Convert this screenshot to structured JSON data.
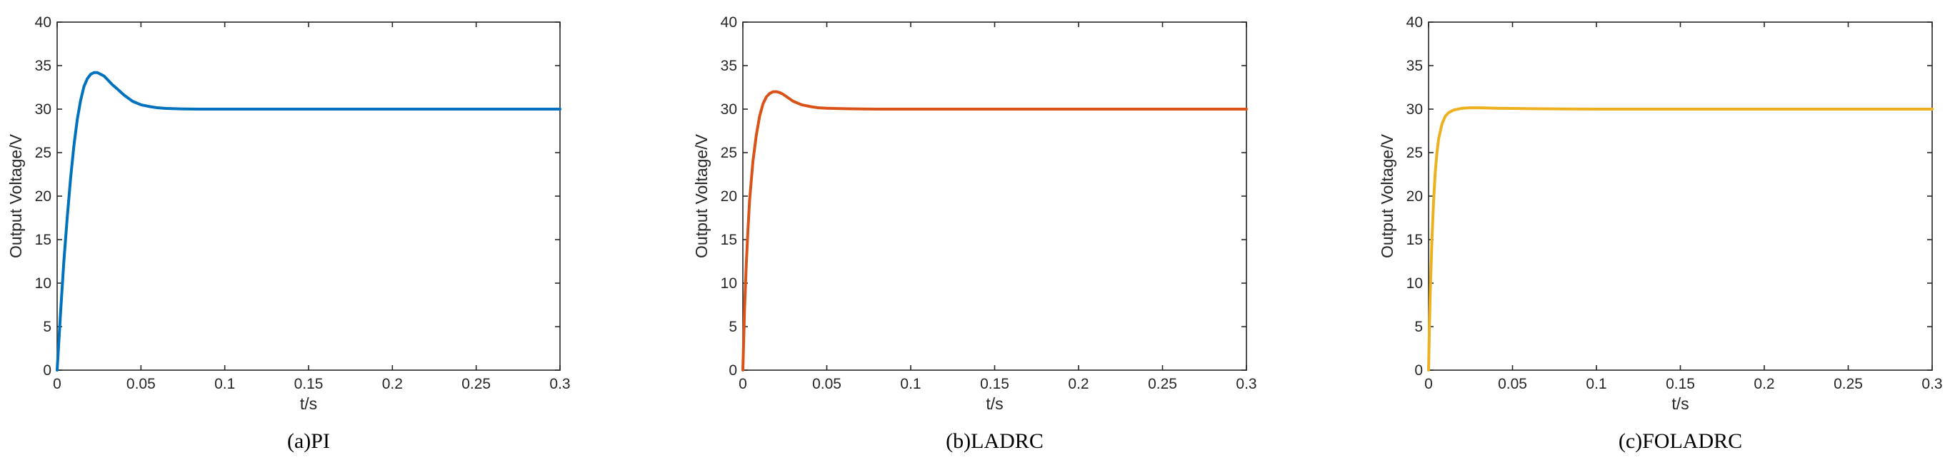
{
  "chart_data": [
    {
      "type": "line",
      "caption": "(a)PI",
      "xlabel": "t/s",
      "ylabel": "Output Voltage/V",
      "xlim": [
        0,
        0.3
      ],
      "ylim": [
        0,
        40
      ],
      "xticks": [
        "0",
        "0.05",
        "0.1",
        "0.15",
        "0.2",
        "0.25",
        "0.3"
      ],
      "yticks": [
        "0",
        "5",
        "10",
        "15",
        "20",
        "25",
        "30",
        "35",
        "40"
      ],
      "grid": false,
      "color": "#0072BD",
      "series": [
        {
          "x": [
            0,
            0.002,
            0.004,
            0.006,
            0.008,
            0.01,
            0.012,
            0.014,
            0.016,
            0.018,
            0.02,
            0.022,
            0.024,
            0.026,
            0.028,
            0.03,
            0.033,
            0.036,
            0.04,
            0.045,
            0.05,
            0.055,
            0.06,
            0.065,
            0.07,
            0.075,
            0.08,
            0.085,
            0.09,
            0.1,
            0.12,
            0.15,
            0.2,
            0.25,
            0.3
          ],
          "y": [
            0,
            6.5,
            12.5,
            17.5,
            22,
            25.8,
            28.8,
            31,
            32.6,
            33.5,
            34,
            34.2,
            34.2,
            34,
            33.8,
            33.4,
            32.8,
            32.3,
            31.6,
            30.9,
            30.5,
            30.3,
            30.15,
            30.08,
            30.05,
            30.02,
            30.01,
            30,
            30,
            30,
            30,
            30,
            30,
            30,
            30
          ]
        }
      ]
    },
    {
      "type": "line",
      "caption": "(b)LADRC",
      "xlabel": "t/s",
      "ylabel": "Output Voltage/V",
      "xlim": [
        0,
        0.3
      ],
      "ylim": [
        0,
        40
      ],
      "xticks": [
        "0",
        "0.05",
        "0.1",
        "0.15",
        "0.2",
        "0.25",
        "0.3"
      ],
      "yticks": [
        "0",
        "5",
        "10",
        "15",
        "20",
        "25",
        "30",
        "35",
        "40"
      ],
      "grid": false,
      "color": "#D95319",
      "series": [
        {
          "x": [
            0,
            0.001,
            0.002,
            0.003,
            0.004,
            0.006,
            0.008,
            0.01,
            0.012,
            0.014,
            0.016,
            0.018,
            0.02,
            0.022,
            0.024,
            0.027,
            0.03,
            0.035,
            0.04,
            0.045,
            0.05,
            0.06,
            0.07,
            0.08,
            0.1,
            0.15,
            0.2,
            0.25,
            0.3
          ],
          "y": [
            0,
            7,
            12,
            16,
            19.5,
            24,
            27,
            29.2,
            30.6,
            31.4,
            31.8,
            32,
            32,
            31.9,
            31.7,
            31.3,
            30.9,
            30.5,
            30.3,
            30.15,
            30.1,
            30.05,
            30.02,
            30,
            30,
            30,
            30,
            30,
            30
          ]
        }
      ]
    },
    {
      "type": "line",
      "caption": "(c)FOLADRC",
      "xlabel": "t/s",
      "ylabel": "Output Voltage/V",
      "xlim": [
        0,
        0.3
      ],
      "ylim": [
        0,
        40
      ],
      "xticks": [
        "0",
        "0.05",
        "0.1",
        "0.15",
        "0.2",
        "0.25",
        "0.3"
      ],
      "yticks": [
        "0",
        "5",
        "10",
        "15",
        "20",
        "25",
        "30",
        "35",
        "40"
      ],
      "grid": false,
      "color": "#EDB120",
      "series": [
        {
          "x": [
            0,
            0.0005,
            0.001,
            0.002,
            0.003,
            0.004,
            0.005,
            0.006,
            0.008,
            0.01,
            0.012,
            0.015,
            0.02,
            0.025,
            0.03,
            0.04,
            0.05,
            0.06,
            0.08,
            0.1,
            0.15,
            0.2,
            0.25,
            0.3
          ],
          "y": [
            0,
            5,
            9,
            15,
            19.5,
            22.8,
            25,
            26.6,
            28.3,
            29.2,
            29.6,
            29.9,
            30.1,
            30.15,
            30.15,
            30.1,
            30.08,
            30.05,
            30.02,
            30,
            30,
            30,
            30,
            30
          ]
        }
      ]
    }
  ]
}
